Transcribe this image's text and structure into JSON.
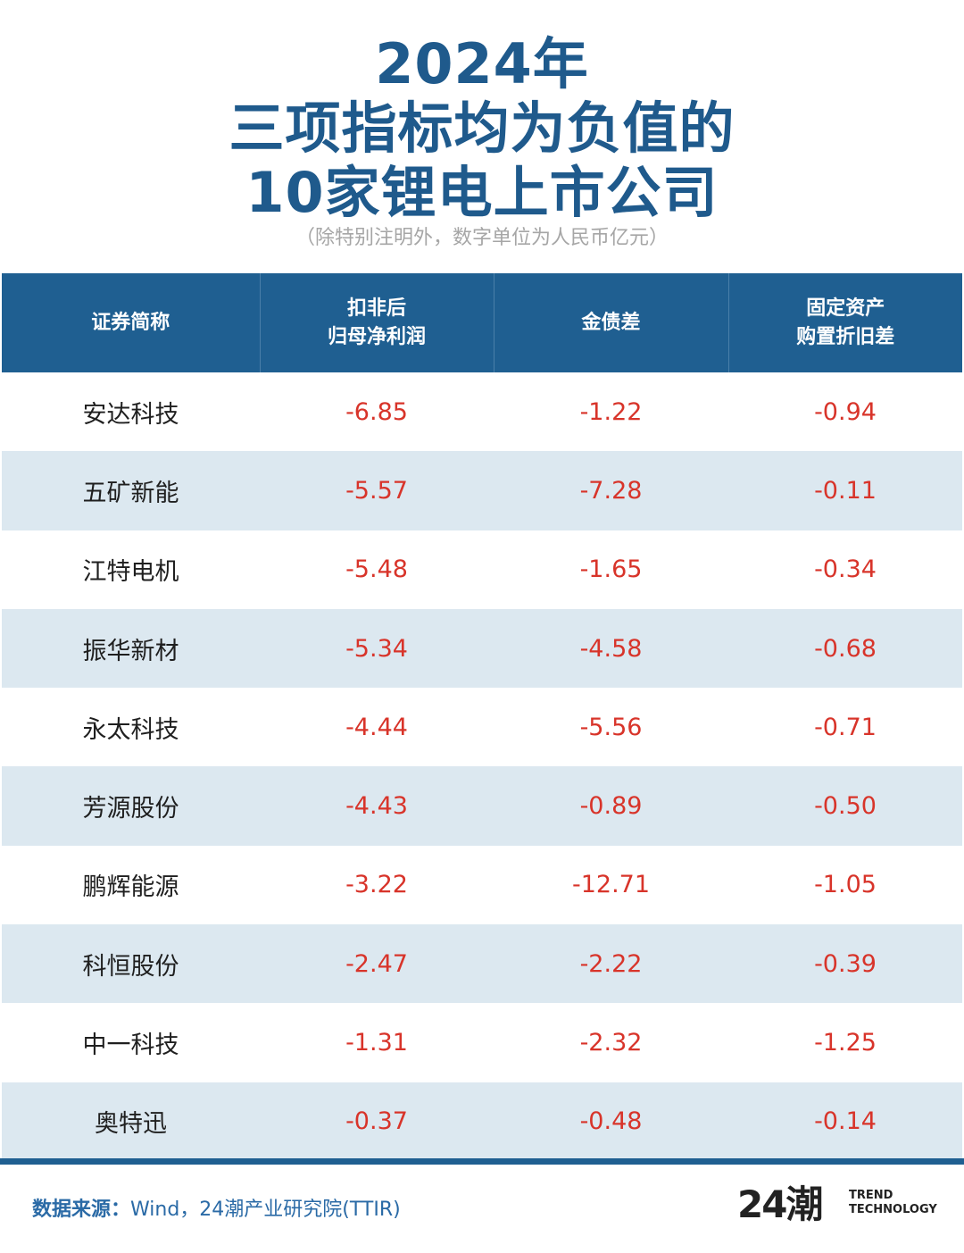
{
  "title": {
    "line1": "2024年",
    "line2": "三项指标均为负值的",
    "line3": "10家锂电上市公司"
  },
  "subtitle": "（除特别注明外，数字单位为人民币亿元）",
  "table": {
    "headers": [
      {
        "lines": [
          "证券简称"
        ]
      },
      {
        "lines": [
          "扣非后",
          "归母净利润"
        ]
      },
      {
        "lines": [
          "金债差"
        ]
      },
      {
        "lines": [
          "固定资产",
          "购置折旧差"
        ]
      }
    ],
    "rows": [
      {
        "name": "安达科技",
        "v1": "-6.85",
        "v2": "-1.22",
        "v3": "-0.94"
      },
      {
        "name": "五矿新能",
        "v1": "-5.57",
        "v2": "-7.28",
        "v3": "-0.11"
      },
      {
        "name": "江特电机",
        "v1": "-5.48",
        "v2": "-1.65",
        "v3": "-0.34"
      },
      {
        "name": "振华新材",
        "v1": "-5.34",
        "v2": "-4.58",
        "v3": "-0.68"
      },
      {
        "name": "永太科技",
        "v1": "-4.44",
        "v2": "-5.56",
        "v3": "-0.71"
      },
      {
        "name": "芳源股份",
        "v1": "-4.43",
        "v2": "-0.89",
        "v3": "-0.50"
      },
      {
        "name": "鹏辉能源",
        "v1": "-3.22",
        "v2": "-12.71",
        "v3": "-1.05"
      },
      {
        "name": "科恒股份",
        "v1": "-2.47",
        "v2": "-2.22",
        "v3": "-0.39"
      },
      {
        "name": "中一科技",
        "v1": "-1.31",
        "v2": "-2.32",
        "v3": "-1.25"
      },
      {
        "name": "奥特迅",
        "v1": "-0.37",
        "v2": "-0.48",
        "v3": "-0.14"
      }
    ]
  },
  "chart_data": {
    "type": "table",
    "title": "2024年三项指标均为负值的10家锂电上市公司",
    "columns": [
      "证券简称",
      "扣非后归母净利润",
      "金债差",
      "固定资产购置折旧差"
    ],
    "rows": [
      [
        "安达科技",
        -6.85,
        -1.22,
        -0.94
      ],
      [
        "五矿新能",
        -5.57,
        -7.28,
        -0.11
      ],
      [
        "江特电机",
        -5.48,
        -1.65,
        -0.34
      ],
      [
        "振华新材",
        -5.34,
        -4.58,
        -0.68
      ],
      [
        "永太科技",
        -4.44,
        -5.56,
        -0.71
      ],
      [
        "芳源股份",
        -4.43,
        -0.89,
        -0.5
      ],
      [
        "鹏辉能源",
        -3.22,
        -12.71,
        -1.05
      ],
      [
        "科恒股份",
        -2.47,
        -2.22,
        -0.39
      ],
      [
        "中一科技",
        -1.31,
        -2.32,
        -1.25
      ],
      [
        "奥特迅",
        -0.37,
        -0.48,
        -0.14
      ]
    ]
  },
  "footer": {
    "source_label": "数据来源：",
    "source_text": "Wind，24潮产业研究院(TTIR)"
  },
  "logo": {
    "mark": "24潮",
    "line1": "TREND",
    "line2": "TECHNOLOGY"
  },
  "colors": {
    "brand": "#1f5f91",
    "negative": "#d8342a",
    "stripe": "#dce8f0"
  }
}
